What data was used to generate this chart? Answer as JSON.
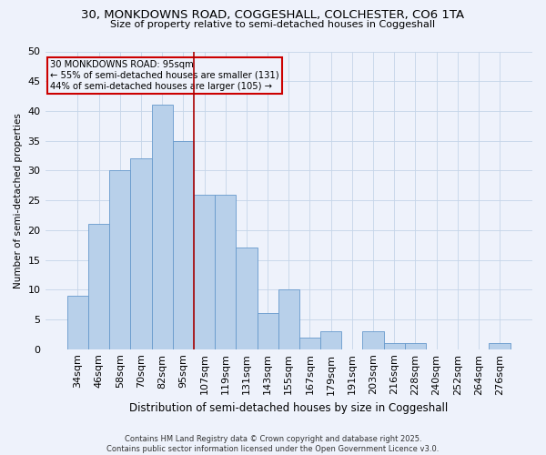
{
  "title1": "30, MONKDOWNS ROAD, COGGESHALL, COLCHESTER, CO6 1TA",
  "title2": "Size of property relative to semi-detached houses in Coggeshall",
  "xlabel": "Distribution of semi-detached houses by size in Coggeshall",
  "ylabel": "Number of semi-detached properties",
  "categories": [
    "34sqm",
    "46sqm",
    "58sqm",
    "70sqm",
    "82sqm",
    "95sqm",
    "107sqm",
    "119sqm",
    "131sqm",
    "143sqm",
    "155sqm",
    "167sqm",
    "179sqm",
    "191sqm",
    "203sqm",
    "216sqm",
    "228sqm",
    "240sqm",
    "252sqm",
    "264sqm",
    "276sqm"
  ],
  "values": [
    9,
    21,
    30,
    32,
    41,
    35,
    26,
    26,
    17,
    6,
    10,
    2,
    3,
    0,
    3,
    1,
    1,
    0,
    0,
    0,
    1
  ],
  "bar_color": "#b8d0ea",
  "bar_edge_color": "#6699cc",
  "vline_index": 5,
  "vline_color": "#aa0000",
  "annotation_lines": [
    "30 MONKDOWNS ROAD: 95sqm",
    "← 55% of semi-detached houses are smaller (131)",
    "44% of semi-detached houses are larger (105) →"
  ],
  "box_color": "#cc0000",
  "ylim": [
    0,
    50
  ],
  "yticks": [
    0,
    5,
    10,
    15,
    20,
    25,
    30,
    35,
    40,
    45,
    50
  ],
  "footer": "Contains HM Land Registry data © Crown copyright and database right 2025.\nContains public sector information licensed under the Open Government Licence v3.0.",
  "bg_color": "#eef2fb",
  "grid_color": "#c5d5e8"
}
